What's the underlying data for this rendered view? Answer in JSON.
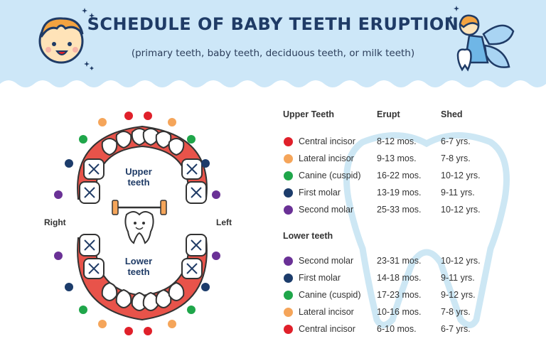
{
  "title": "SCHEDULE OF BABY TEETH ERUPTION",
  "subtitle": "(primary teeth, baby teeth, deciduous teeth, or milk teeth)",
  "diagram": {
    "upper_label_1": "Upper",
    "upper_label_2": "teeth",
    "lower_label_1": "Lower",
    "lower_label_2": "teeth",
    "right_label": "Right",
    "left_label": "Left"
  },
  "colors": {
    "central_incisor": "#e0202a",
    "lateral_incisor": "#f5a55a",
    "canine": "#1fa64a",
    "first_molar": "#1c3c6b",
    "second_molar": "#6a3196",
    "gum": "#e8534a",
    "header_bg": "#cde7f8",
    "title": "#1f3b66"
  },
  "table": {
    "upper_header": "Upper Teeth",
    "erupt_header": "Erupt",
    "shed_header": "Shed",
    "lower_header": "Lower teeth",
    "upper_rows": [
      {
        "name": "Central incisor",
        "erupt": "8-12 mos.",
        "shed": "6-7 yrs.",
        "color": "#e0202a"
      },
      {
        "name": "Lateral incisor",
        "erupt": "9-13 mos.",
        "shed": "7-8 yrs.",
        "color": "#f5a55a"
      },
      {
        "name": "Canine (cuspid)",
        "erupt": "16-22 mos.",
        "shed": "10-12 yrs.",
        "color": "#1fa64a"
      },
      {
        "name": "First molar",
        "erupt": "13-19 mos.",
        "shed": "9-11 yrs.",
        "color": "#1c3c6b"
      },
      {
        "name": "Second molar",
        "erupt": "25-33 mos.",
        "shed": "10-12 yrs.",
        "color": "#6a3196"
      }
    ],
    "lower_rows": [
      {
        "name": "Second molar",
        "erupt": "23-31 mos.",
        "shed": "10-12 yrs.",
        "color": "#6a3196"
      },
      {
        "name": "First molar",
        "erupt": "14-18 mos.",
        "shed": "9-11 yrs.",
        "color": "#1c3c6b"
      },
      {
        "name": "Canine (cuspid)",
        "erupt": "17-23 mos.",
        "shed": "9-12 yrs.",
        "color": "#1fa64a"
      },
      {
        "name": "Lateral incisor",
        "erupt": "10-16 mos.",
        "shed": "7-8 yrs.",
        "color": "#f5a55a"
      },
      {
        "name": "Central incisor",
        "erupt": "6-10 mos.",
        "shed": "6-7 yrs.",
        "color": "#e0202a"
      }
    ]
  }
}
